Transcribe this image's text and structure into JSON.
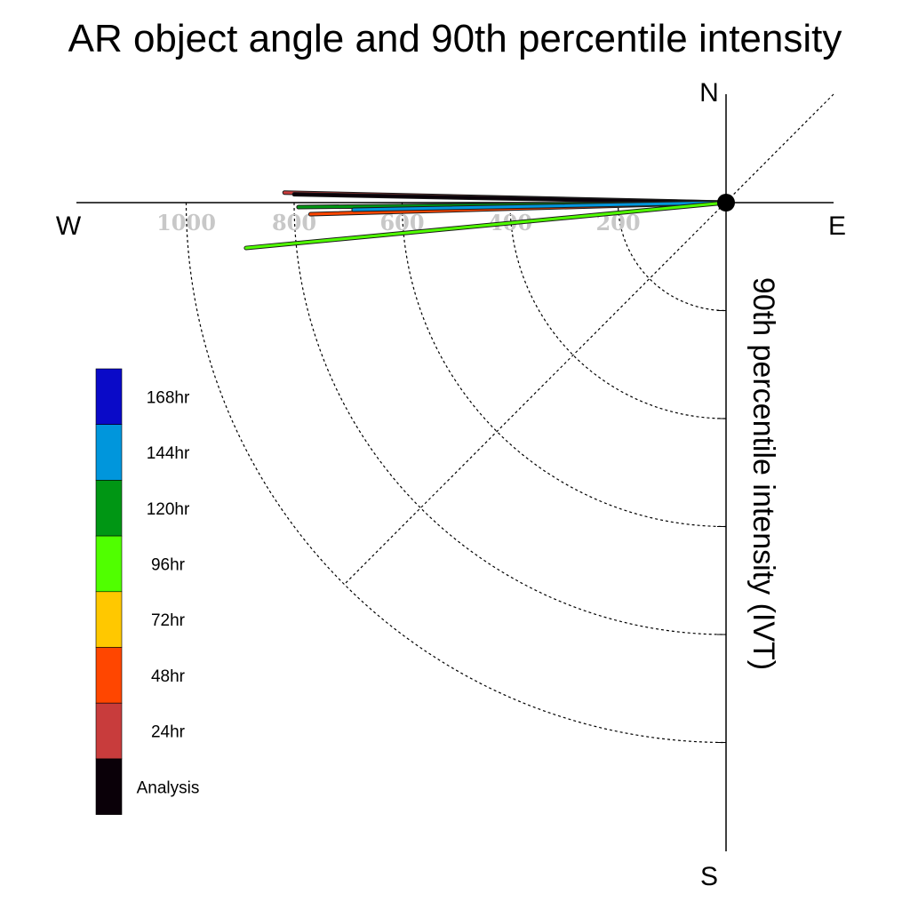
{
  "chart_data": {
    "type": "polar-vector",
    "title": "AR object angle and 90th percentile intensity",
    "radial_label": "90th percentile intensity (IVT)",
    "compass": {
      "north": "N",
      "south": "S",
      "east": "E",
      "west": "W"
    },
    "radial_ticks": [
      "200",
      "400",
      "600",
      "800",
      "1000"
    ],
    "radial_tick_values": [
      200,
      400,
      600,
      800,
      1000
    ],
    "radial_range": [
      0,
      1200
    ],
    "grid": true,
    "legend_position": "left",
    "legend": [
      {
        "label": "168hr",
        "color": "#0a0ac8"
      },
      {
        "label": "144hr",
        "color": "#0096dc"
      },
      {
        "label": "120hr",
        "color": "#009614"
      },
      {
        "label": "96hr",
        "color": "#50ff00"
      },
      {
        "label": "72hr",
        "color": "#ffc800"
      },
      {
        "label": "48hr",
        "color": "#ff4600"
      },
      {
        "label": "24hr",
        "color": "#c83c3c"
      },
      {
        "label": "Analysis",
        "color": "#0a0008"
      }
    ],
    "series": [
      {
        "name": "24hr",
        "intensity": 818,
        "angle_deg": 178.7,
        "color": "#c83c3c"
      },
      {
        "name": "Analysis",
        "intensity": 800,
        "angle_deg": 178.9,
        "color": "#0a0008"
      },
      {
        "name": "48hr",
        "intensity": 770,
        "angle_deg": 181.6,
        "color": "#ff4600"
      },
      {
        "name": "120hr",
        "intensity": 792,
        "angle_deg": 180.6,
        "color": "#009614"
      },
      {
        "name": "144hr",
        "intensity": 690,
        "angle_deg": 181.1,
        "color": "#0096dc"
      },
      {
        "name": "96hr",
        "intensity": 893,
        "angle_deg": 185.4,
        "color": "#50ff00"
      }
    ]
  }
}
